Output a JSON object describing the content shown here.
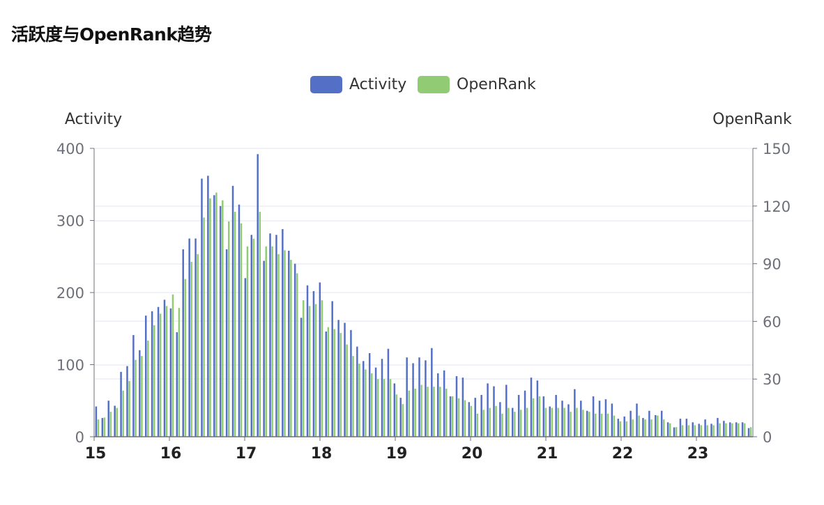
{
  "page": {
    "title": "活跃度与OpenRank趋势"
  },
  "chart_data": {
    "type": "bar",
    "title": "活跃度与OpenRank趋势",
    "legend": {
      "position": "top-center",
      "items": [
        "Activity",
        "OpenRank"
      ]
    },
    "colors": {
      "Activity": "#5470c6",
      "OpenRank": "#91cc75",
      "grid": "#e0e6f1",
      "axis": "#6e7079"
    },
    "y_left": {
      "name": "Activity",
      "min": 0,
      "max": 400,
      "ticks": [
        0,
        100,
        200,
        300,
        400
      ]
    },
    "y_right": {
      "name": "OpenRank",
      "min": 0,
      "max": 150,
      "ticks": [
        0,
        30,
        60,
        90,
        120,
        150
      ]
    },
    "x_ticks": [
      "15",
      "16",
      "17",
      "18",
      "19",
      "20",
      "21",
      "22",
      "23"
    ],
    "x": {
      "start": 15,
      "step": 0.0833,
      "end": 23.75
    },
    "series": [
      {
        "name": "Activity",
        "axis": "left",
        "values": [
          42,
          26,
          50,
          43,
          90,
          98,
          141,
          120,
          168,
          174,
          180,
          190,
          178,
          145,
          260,
          275,
          275,
          358,
          362,
          335,
          320,
          260,
          348,
          322,
          220,
          280,
          392,
          244,
          282,
          280,
          288,
          258,
          240,
          165,
          210,
          202,
          214,
          146,
          188,
          162,
          158,
          148,
          125,
          105,
          116,
          96,
          108,
          122,
          74,
          54,
          110,
          102,
          110,
          106,
          123,
          88,
          92,
          56,
          84,
          82,
          48,
          54,
          58,
          74,
          70,
          48,
          72,
          40,
          58,
          64,
          82,
          78,
          56,
          42,
          58,
          50,
          45,
          66,
          50,
          36,
          56,
          50,
          52,
          46,
          25,
          28,
          36,
          46,
          26,
          36,
          30,
          36,
          20,
          13,
          25,
          25,
          20,
          18,
          24,
          18,
          26,
          22,
          20,
          20,
          20,
          12
        ]
      },
      {
        "name": "OpenRank",
        "axis": "right",
        "values": [
          9,
          10,
          13,
          15,
          24,
          29,
          40,
          42,
          50,
          58,
          64,
          68,
          74,
          67,
          82,
          91,
          95,
          114,
          124,
          127,
          123,
          112,
          117,
          111,
          99,
          103,
          117,
          99,
          99,
          95,
          97,
          92,
          85,
          71,
          68,
          69,
          71,
          57,
          56,
          54,
          48,
          42,
          38,
          35,
          33,
          30,
          30,
          30,
          22,
          17,
          24,
          25,
          27,
          26,
          26,
          26,
          25,
          21,
          20,
          19,
          16,
          12,
          14,
          15,
          16,
          12,
          15,
          13,
          14,
          15,
          20,
          21,
          15,
          15,
          15,
          15,
          13,
          15,
          14,
          13,
          12,
          12,
          12,
          11,
          8,
          8,
          9,
          11,
          9,
          9,
          11,
          9,
          7,
          5,
          6,
          6,
          6,
          6,
          6,
          6,
          7,
          7,
          7,
          7,
          7,
          5
        ]
      }
    ]
  }
}
